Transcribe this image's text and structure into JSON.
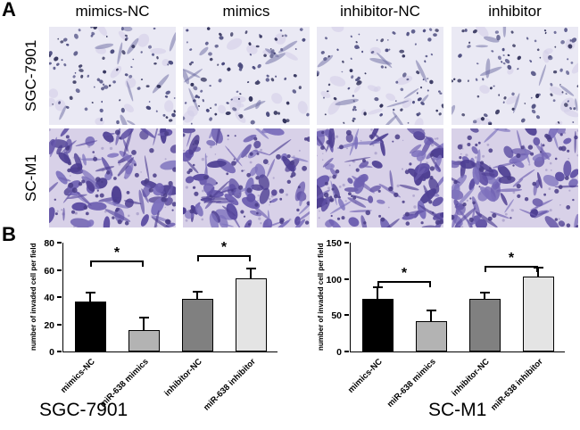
{
  "figure": {
    "panel_a": "A",
    "panel_b": "B",
    "column_headers": [
      "mimics-NC",
      "mimics",
      "inhibitor-NC",
      "inhibitor"
    ],
    "row_labels": [
      "SGC-7901",
      "SC-M1"
    ]
  },
  "chart_data": [
    {
      "type": "bar",
      "title": "SGC-7901",
      "ylabel": "number of invaded cell per field",
      "categories": [
        "mimics-NC",
        "miR-638 mimics",
        "inhibitor-NC",
        "miR-638 inhibitor"
      ],
      "values": [
        37,
        16,
        39,
        54
      ],
      "errors": [
        6,
        9,
        5,
        7
      ],
      "ylim": [
        0,
        80
      ],
      "yticks": [
        0,
        20,
        40,
        60,
        80
      ],
      "bar_colors": [
        "#000000",
        "#b3b3b3",
        "#808080",
        "#e4e4e4"
      ],
      "grid": false,
      "legend": "none",
      "significance": [
        {
          "pair": [
            0,
            1
          ],
          "y": 67,
          "label": "*"
        },
        {
          "pair": [
            2,
            3
          ],
          "y": 71,
          "label": "*"
        }
      ]
    },
    {
      "type": "bar",
      "title": "SC-M1",
      "ylabel": "number of invaded cell per field",
      "categories": [
        "mimics-NC",
        "miR-638 mimics",
        "inhibitor-NC",
        "miR-638 inhibitor"
      ],
      "values": [
        72,
        42,
        72,
        103
      ],
      "errors": [
        16,
        14,
        9,
        13
      ],
      "ylim": [
        0,
        150
      ],
      "yticks": [
        0,
        50,
        100,
        150
      ],
      "bar_colors": [
        "#000000",
        "#b3b3b3",
        "#808080",
        "#e4e4e4"
      ],
      "grid": false,
      "legend": "none",
      "significance": [
        {
          "pair": [
            0,
            1
          ],
          "y": 97,
          "label": "*"
        },
        {
          "pair": [
            2,
            3
          ],
          "y": 118,
          "label": "*"
        }
      ]
    }
  ]
}
